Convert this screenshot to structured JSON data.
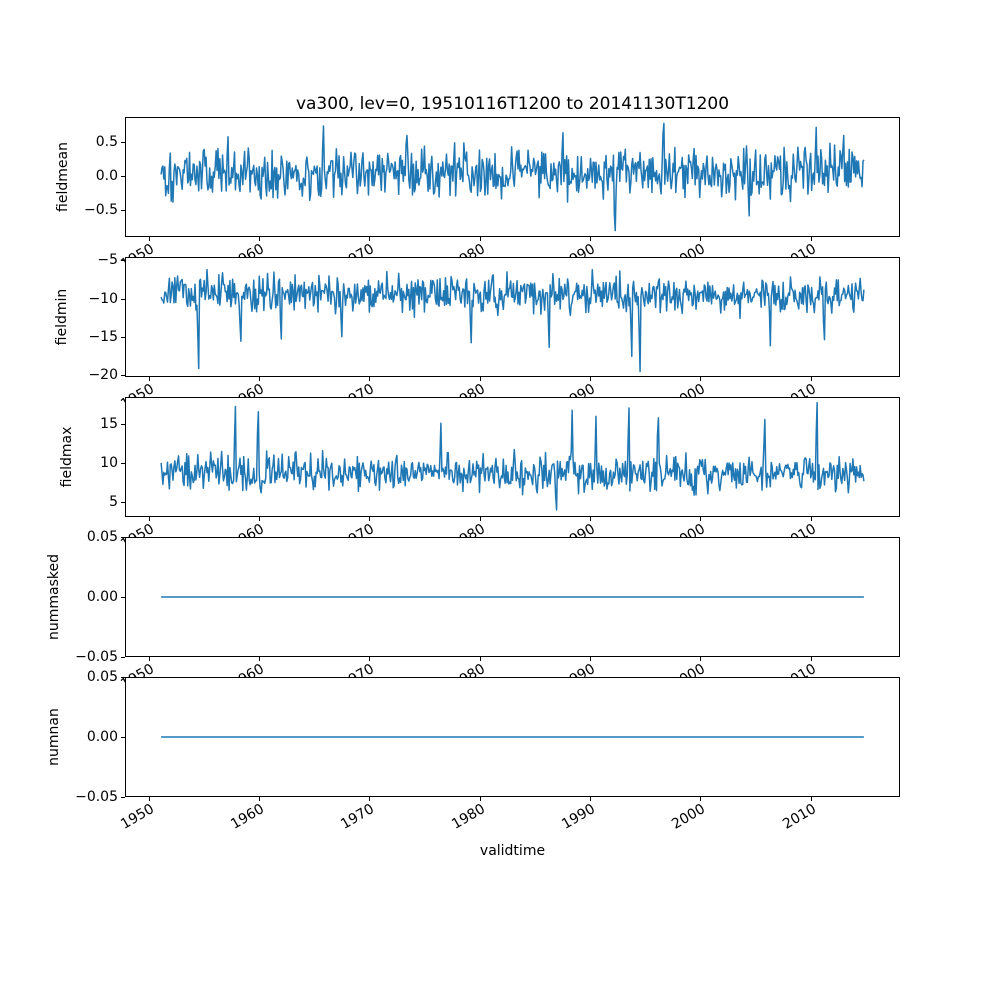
{
  "figure": {
    "title": "va300, lev=0, 19510116T1200 to 20141130T1200",
    "xlabel": "validtime",
    "line_color": "#1f77b4",
    "background": "#ffffff",
    "x_tick_labels": [
      "1950",
      "1960",
      "1970",
      "1980",
      "1990",
      "2000",
      "2010"
    ],
    "x_tick_values": [
      1950,
      1960,
      1970,
      1980,
      1990,
      2000,
      2010
    ],
    "xlim": [
      1947.85,
      2018.11
    ],
    "time_start": 1951.04,
    "time_end": 2014.92
  },
  "chart_data": [
    {
      "type": "line",
      "name": "fieldmean",
      "title": "va300, lev=0, 19510116T1200 to 20141130T1200",
      "ylabel": "fieldmean",
      "x_range": [
        1951.04,
        2014.92
      ],
      "n_points": 767,
      "ylim": [
        -0.9,
        0.86
      ],
      "yticks": [
        {
          "value": 0.5,
          "label": "0.5"
        },
        {
          "value": 0.0,
          "label": "0.0"
        },
        {
          "value": -0.5,
          "label": "−0.5"
        }
      ],
      "gen": {
        "seed": 101,
        "base": 0.04,
        "amp": 0.56,
        "clamp": [
          -0.58,
          0.58
        ],
        "spikes": [
          [
            1957.1,
            0.58
          ],
          [
            1965.8,
            0.74
          ],
          [
            1973.4,
            0.6
          ],
          [
            1987.6,
            0.64
          ],
          [
            1992.3,
            -0.82
          ],
          [
            1996.7,
            0.78
          ],
          [
            2004.5,
            -0.6
          ],
          [
            2010.6,
            0.72
          ],
          [
            2013.1,
            0.6
          ]
        ]
      },
      "approx_stats": {
        "mean": 0.04,
        "min": -0.82,
        "max": 0.78
      }
    },
    {
      "type": "line",
      "name": "fieldmin",
      "ylabel": "fieldmin",
      "x_range": [
        1951.04,
        2014.92
      ],
      "n_points": 767,
      "ylim": [
        -20.2,
        -4.6
      ],
      "yticks": [
        {
          "value": -5,
          "label": "−5"
        },
        {
          "value": -10,
          "label": "−10"
        },
        {
          "value": -15,
          "label": "−15"
        },
        {
          "value": -20,
          "label": "−20"
        }
      ],
      "gen": {
        "seed": 202,
        "base": -9.3,
        "amp": 3.6,
        "clamp": [
          -14.8,
          -5.4
        ],
        "spikes": [
          [
            1954.5,
            -19.2
          ],
          [
            1958.3,
            -15.6
          ],
          [
            1962.0,
            -15.3
          ],
          [
            1967.5,
            -15.0
          ],
          [
            1979.2,
            -15.8
          ],
          [
            1986.3,
            -16.4
          ],
          [
            1993.8,
            -17.6
          ],
          [
            1994.6,
            -19.6
          ],
          [
            2006.4,
            -16.2
          ],
          [
            2011.3,
            -15.4
          ]
        ]
      },
      "approx_stats": {
        "mean": -9.3,
        "min": -19.6,
        "max": -5.4
      }
    },
    {
      "type": "line",
      "name": "fieldmax",
      "ylabel": "fieldmax",
      "x_range": [
        1951.04,
        2014.92
      ],
      "n_points": 767,
      "ylim": [
        3.1,
        18.5
      ],
      "yticks": [
        {
          "value": 15,
          "label": "15"
        },
        {
          "value": 10,
          "label": "10"
        },
        {
          "value": 5,
          "label": "5"
        }
      ],
      "gen": {
        "seed": 303,
        "base": 8.7,
        "amp": 3.4,
        "clamp": [
          4.3,
          13.8
        ],
        "spikes": [
          [
            1957.8,
            17.4
          ],
          [
            1959.9,
            16.7
          ],
          [
            1976.5,
            15.2
          ],
          [
            1987.0,
            3.9
          ],
          [
            1988.4,
            16.9
          ],
          [
            1990.6,
            16.1
          ],
          [
            1993.6,
            17.2
          ],
          [
            1996.2,
            15.9
          ],
          [
            2005.9,
            15.7
          ],
          [
            2010.7,
            17.9
          ]
        ]
      },
      "approx_stats": {
        "mean": 8.7,
        "min": 3.9,
        "max": 17.9
      }
    },
    {
      "type": "line",
      "name": "nummasked",
      "ylabel": "nummasked",
      "x_range": [
        1951.04,
        2014.92
      ],
      "ylim": [
        -0.05,
        0.05
      ],
      "yticks": [
        {
          "value": 0.05,
          "label": "0.05"
        },
        {
          "value": 0.0,
          "label": "0.00"
        },
        {
          "value": -0.05,
          "label": "−0.05"
        }
      ],
      "constant": 0.0,
      "approx_stats": {
        "mean": 0.0,
        "min": 0.0,
        "max": 0.0
      }
    },
    {
      "type": "line",
      "name": "numnan",
      "ylabel": "numnan",
      "x_range": [
        1951.04,
        2014.92
      ],
      "ylim": [
        -0.05,
        0.05
      ],
      "yticks": [
        {
          "value": 0.05,
          "label": "0.05"
        },
        {
          "value": 0.0,
          "label": "0.00"
        },
        {
          "value": -0.05,
          "label": "−0.05"
        }
      ],
      "constant": 0.0,
      "approx_stats": {
        "mean": 0.0,
        "min": 0.0,
        "max": 0.0
      }
    }
  ]
}
